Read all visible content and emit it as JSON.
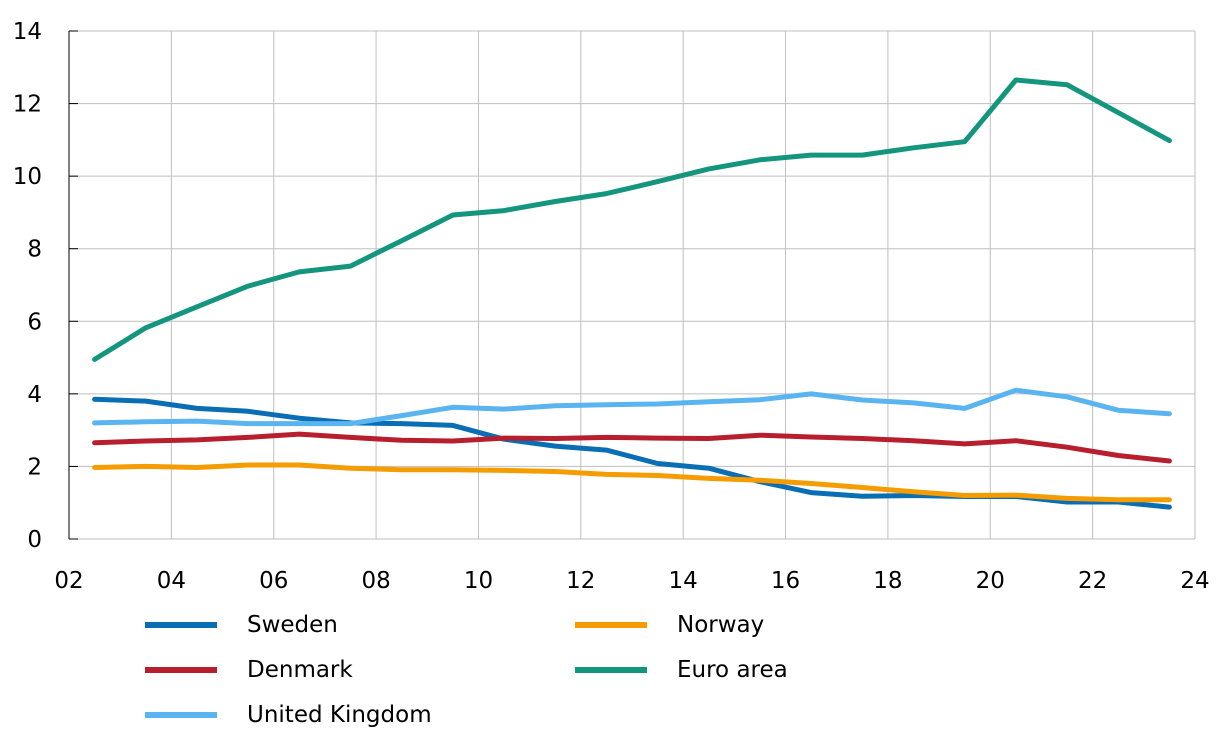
{
  "chart_data": {
    "type": "line",
    "title": "",
    "xlabel": "",
    "ylabel": "",
    "xlim": [
      2002,
      2024
    ],
    "ylim": [
      0,
      14
    ],
    "grid": true,
    "legend_position": "bottom",
    "x_tick_labels": [
      "02",
      "04",
      "06",
      "08",
      "10",
      "12",
      "14",
      "16",
      "18",
      "20",
      "22",
      "24"
    ],
    "y_tick_labels": [
      "0",
      "2",
      "4",
      "6",
      "8",
      "10",
      "12",
      "14"
    ],
    "x": [
      2002.5,
      2003.5,
      2004.5,
      2005.5,
      2006.5,
      2007.5,
      2008.5,
      2009.5,
      2010.5,
      2011.5,
      2012.5,
      2013.5,
      2014.5,
      2015.5,
      2016.5,
      2017.5,
      2018.5,
      2019.5,
      2020.5,
      2021.5,
      2022.5,
      2023.5
    ],
    "series": [
      {
        "name": "Sweden",
        "color": "#0a6eb4",
        "values": [
          3.85,
          3.8,
          3.6,
          3.52,
          3.33,
          3.2,
          3.18,
          3.13,
          2.75,
          2.56,
          2.45,
          2.08,
          1.95,
          1.58,
          1.28,
          1.18,
          1.2,
          1.17,
          1.17,
          1.02,
          1.02,
          0.88
        ]
      },
      {
        "name": "Denmark",
        "color": "#b81f2e",
        "values": [
          2.65,
          2.7,
          2.73,
          2.8,
          2.89,
          2.8,
          2.72,
          2.7,
          2.78,
          2.77,
          2.8,
          2.78,
          2.77,
          2.86,
          2.81,
          2.77,
          2.71,
          2.62,
          2.71,
          2.53,
          2.3,
          2.15
        ]
      },
      {
        "name": "United Kingdom",
        "color": "#5ab4f0",
        "values": [
          3.2,
          3.23,
          3.25,
          3.18,
          3.18,
          3.18,
          3.4,
          3.63,
          3.58,
          3.67,
          3.7,
          3.72,
          3.78,
          3.84,
          4.0,
          3.83,
          3.75,
          3.6,
          4.1,
          3.92,
          3.55,
          3.45
        ]
      },
      {
        "name": "Norway",
        "color": "#f59c00",
        "values": [
          1.97,
          2.0,
          1.97,
          2.04,
          2.04,
          1.95,
          1.91,
          1.91,
          1.89,
          1.86,
          1.78,
          1.75,
          1.67,
          1.62,
          1.53,
          1.42,
          1.3,
          1.2,
          1.21,
          1.12,
          1.08,
          1.08
        ]
      },
      {
        "name": "Euro area",
        "color": "#13967d",
        "values": [
          4.95,
          5.82,
          6.4,
          6.97,
          7.36,
          7.52,
          8.22,
          8.93,
          9.05,
          9.3,
          9.52,
          9.85,
          10.2,
          10.45,
          10.58,
          10.58,
          10.78,
          10.95,
          12.65,
          12.52,
          11.75,
          10.98
        ]
      }
    ]
  },
  "legend": {
    "items": [
      {
        "label": "Sweden",
        "color": "#0a6eb4"
      },
      {
        "label": "Norway",
        "color": "#f59c00"
      },
      {
        "label": "Denmark",
        "color": "#b81f2e"
      },
      {
        "label": "Euro area",
        "color": "#13967d"
      },
      {
        "label": "United Kingdom",
        "color": "#5ab4f0"
      }
    ]
  },
  "style": {
    "grid_color": "#bfbfbf",
    "axis_color": "#000000"
  }
}
